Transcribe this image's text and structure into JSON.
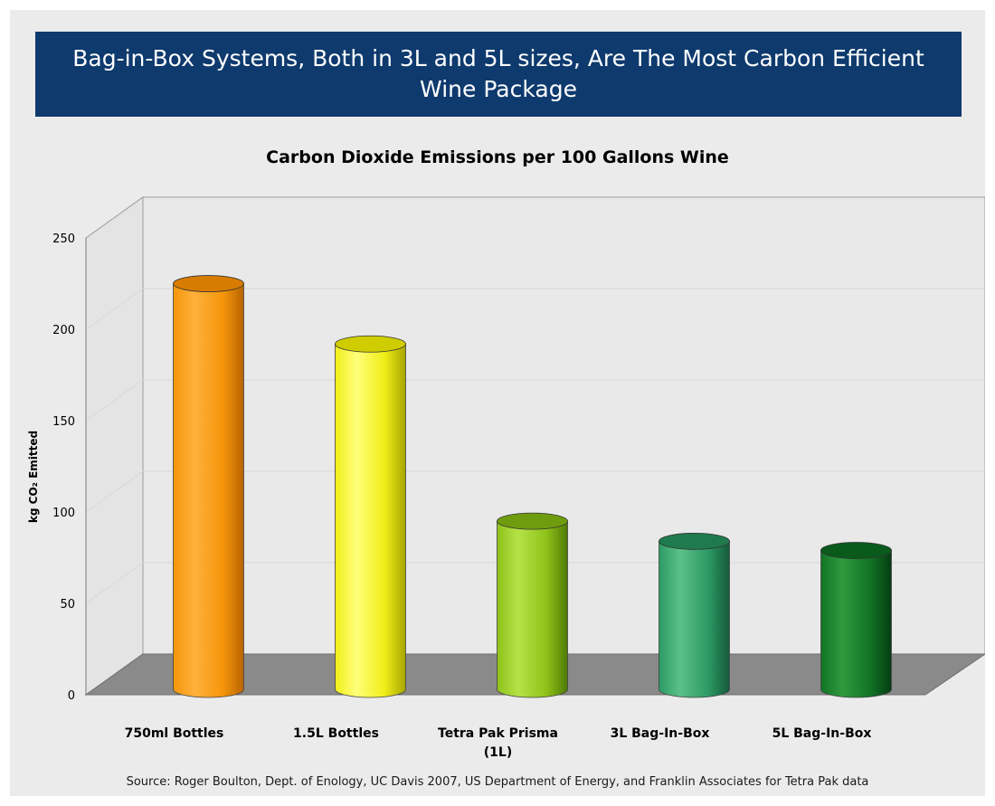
{
  "banner": {
    "title": "Bag-in-Box Systems, Both in 3L and 5L sizes, Are The Most Carbon Efficient Wine Package"
  },
  "source": "Source: Roger Boulton, Dept. of Enology, UC Davis 2007, US Department of Energy, and Franklin Associates for Tetra Pak data",
  "colors": {
    "banner_bg": "#0e3a6e",
    "floor": "#8a8a8a",
    "wall": "#e9e9e9"
  },
  "chart_data": {
    "type": "bar",
    "title": "Carbon Dioxide Emissions per 100 Gallons Wine",
    "xlabel": "",
    "ylabel": "kg CO₂ Emitted",
    "ylim": [
      0,
      250
    ],
    "yticks": [
      0,
      50,
      100,
      150,
      200,
      250
    ],
    "grid": true,
    "style": "3d-cylinder",
    "categories": [
      "750ml Bottles",
      "1.5L Bottles",
      "Tetra Pak Prisma (1L)",
      "3L Bag-In-Box",
      "5L Bag-In-Box"
    ],
    "category_lines": [
      [
        "750ml Bottles"
      ],
      [
        "1.5L Bottles"
      ],
      [
        "Tetra Pak Prisma",
        "(1L)"
      ],
      [
        "3L Bag-In-Box"
      ],
      [
        "5L Bag-In-Box"
      ]
    ],
    "values": [
      222,
      189,
      92,
      81,
      76
    ],
    "bar_colors": [
      {
        "light": "#ffb13a",
        "mid": "#f5960c",
        "dark": "#b86400",
        "top": "#d77c00"
      },
      {
        "light": "#ffff7a",
        "mid": "#f0ee18",
        "dark": "#a7a600",
        "top": "#cfcd00"
      },
      {
        "light": "#b5e247",
        "mid": "#8ec21a",
        "dark": "#4f7a05",
        "top": "#6e9c0e"
      },
      {
        "light": "#5cc08a",
        "mid": "#2d9a63",
        "dark": "#15593a",
        "top": "#1f7a4d"
      },
      {
        "light": "#2f9a3e",
        "mid": "#127326",
        "dark": "#063c12",
        "top": "#0a5a1c"
      }
    ]
  }
}
